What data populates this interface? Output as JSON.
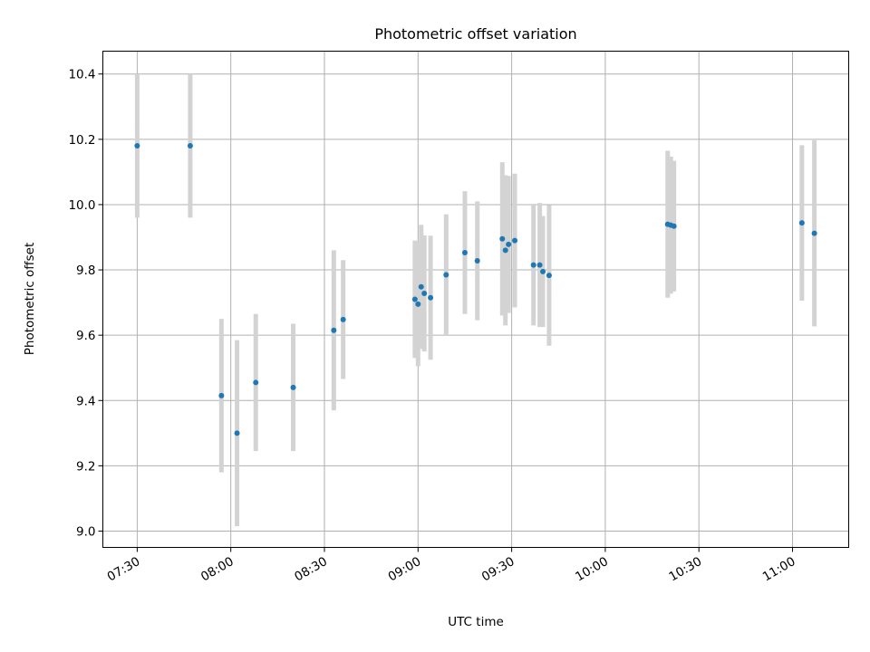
{
  "chart_data": {
    "type": "scatter",
    "title": "Photometric offset variation",
    "xlabel": "UTC time",
    "ylabel": "Photometric offset",
    "x_ticks": [
      "07:30",
      "08:00",
      "08:30",
      "09:00",
      "09:30",
      "10:00",
      "10:30",
      "11:00"
    ],
    "y_ticks": [
      "9.0",
      "9.2",
      "9.4",
      "9.6",
      "9.8",
      "10.0",
      "10.2",
      "10.4"
    ],
    "xlim": [
      "07:19",
      "11:18"
    ],
    "ylim": [
      8.95,
      10.47
    ],
    "grid": true,
    "point_color": "#1f77b4",
    "errorbar_color": "#d3d3d3",
    "points": [
      {
        "x": "07:30",
        "y": 10.18,
        "err": 0.22
      },
      {
        "x": "07:47",
        "y": 10.18,
        "err": 0.22
      },
      {
        "x": "07:57",
        "y": 9.415,
        "err": 0.235
      },
      {
        "x": "08:02",
        "y": 9.3,
        "err": 0.285
      },
      {
        "x": "08:08",
        "y": 9.455,
        "err": 0.21
      },
      {
        "x": "08:20",
        "y": 9.44,
        "err": 0.195
      },
      {
        "x": "08:33",
        "y": 9.615,
        "err": 0.245
      },
      {
        "x": "08:36",
        "y": 9.648,
        "err": 0.182
      },
      {
        "x": "08:59",
        "y": 9.71,
        "err": 0.18
      },
      {
        "x": "09:00",
        "y": 9.695,
        "err": 0.19
      },
      {
        "x": "09:01",
        "y": 9.748,
        "err": 0.19
      },
      {
        "x": "09:02",
        "y": 9.728,
        "err": 0.178
      },
      {
        "x": "09:04",
        "y": 9.715,
        "err": 0.19
      },
      {
        "x": "09:09",
        "y": 9.785,
        "err": 0.185
      },
      {
        "x": "09:15",
        "y": 9.853,
        "err": 0.188
      },
      {
        "x": "09:19",
        "y": 9.828,
        "err": 0.182
      },
      {
        "x": "09:27",
        "y": 9.895,
        "err": 0.235
      },
      {
        "x": "09:28",
        "y": 9.86,
        "err": 0.23
      },
      {
        "x": "09:29",
        "y": 9.878,
        "err": 0.21
      },
      {
        "x": "09:31",
        "y": 9.89,
        "err": 0.205
      },
      {
        "x": "09:37",
        "y": 9.815,
        "err": 0.185
      },
      {
        "x": "09:39",
        "y": 9.815,
        "err": 0.19
      },
      {
        "x": "09:40",
        "y": 9.795,
        "err": 0.17
      },
      {
        "x": "09:42",
        "y": 9.783,
        "err": 0.215
      },
      {
        "x": "10:20",
        "y": 9.94,
        "err": 0.225
      },
      {
        "x": "10:21",
        "y": 9.937,
        "err": 0.21
      },
      {
        "x": "10:22",
        "y": 9.934,
        "err": 0.2
      },
      {
        "x": "11:03",
        "y": 9.944,
        "err": 0.238
      },
      {
        "x": "11:07",
        "y": 9.912,
        "err": 0.285
      }
    ]
  }
}
